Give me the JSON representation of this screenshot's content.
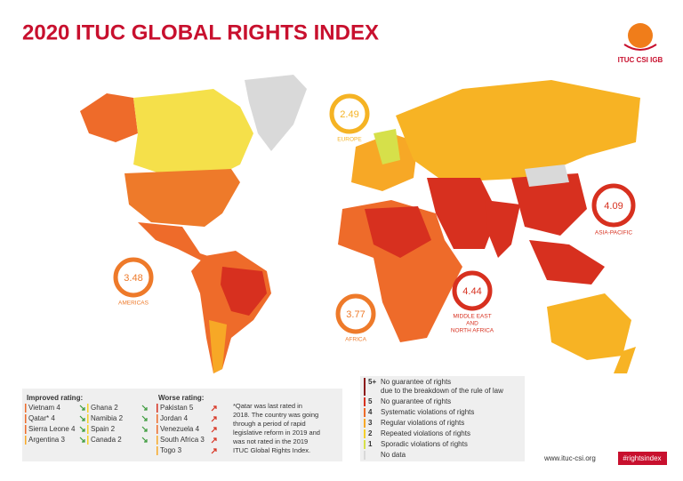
{
  "header": {
    "title": "2020 ITUC GLOBAL RIGHTS INDEX",
    "logo_text": "ITUC CSI IGB"
  },
  "regions": [
    {
      "value": "2.49",
      "label_lines": [
        "EUROPE"
      ],
      "color": "#f5b324"
    },
    {
      "value": "4.09",
      "label_lines": [
        "ASIA-PACIFIC"
      ],
      "color": "#d7301f"
    },
    {
      "value": "3.48",
      "label_lines": [
        "AMERICAS"
      ],
      "color": "#ee7a2a"
    },
    {
      "value": "3.77",
      "label_lines": [
        "AFRICA"
      ],
      "color": "#ee7a2a"
    },
    {
      "value": "4.44",
      "label_lines": [
        "MIDDLE EAST",
        "AND",
        "NORTH AFRICA"
      ],
      "color": "#d7301f"
    }
  ],
  "improved": {
    "heading": "Improved rating:",
    "items": [
      {
        "text": "Vietnam 4",
        "color": "#ee6b2a"
      },
      {
        "text": "Qatar* 4",
        "color": "#ee6b2a"
      },
      {
        "text": "Sierra Leone 4",
        "color": "#ee6b2a"
      },
      {
        "text": "Argentina 3",
        "color": "#f7a826"
      },
      {
        "text": "Ghana 2",
        "color": "#f5d02a"
      },
      {
        "text": "Namibia 2",
        "color": "#f5d02a"
      },
      {
        "text": "Spain 2",
        "color": "#f5d02a"
      },
      {
        "text": "Canada 2",
        "color": "#f5d02a"
      }
    ]
  },
  "worse": {
    "heading": "Worse rating:",
    "items": [
      {
        "text": "Pakistan 5",
        "color": "#d7301f"
      },
      {
        "text": "Jordan 4",
        "color": "#ee6b2a"
      },
      {
        "text": "Venezuela 4",
        "color": "#ee6b2a"
      },
      {
        "text": "South Africa 3",
        "color": "#f7a826"
      },
      {
        "text": "Togo 3",
        "color": "#f7a826"
      }
    ]
  },
  "note_lines": [
    "*Qatar was last rated in",
    "2018. The country was going",
    "through a period of rapid",
    "legislative reform in 2019 and",
    "was not rated in the 2019",
    "ITUC Global Rights Index."
  ],
  "legend": [
    {
      "key": "5+",
      "lines": [
        "No guarantee of rights",
        "due to the breakdown of the rule of law"
      ],
      "color": "#8b1a1a"
    },
    {
      "key": "5",
      "lines": [
        "No guarantee of rights"
      ],
      "color": "#d7301f"
    },
    {
      "key": "4",
      "lines": [
        "Systematic violations of rights"
      ],
      "color": "#ee6b2a"
    },
    {
      "key": "3",
      "lines": [
        "Regular violations of rights"
      ],
      "color": "#f7a826"
    },
    {
      "key": "2",
      "lines": [
        "Repeated violations of rights"
      ],
      "color": "#f5d02a"
    },
    {
      "key": "1",
      "lines": [
        "Sporadic violations of rights"
      ],
      "color": "#d6e04a"
    },
    {
      "lines": [
        "No data"
      ],
      "color": "#d9d9d9"
    }
  ],
  "footer": {
    "url": "www.ituc-csi.org",
    "hashtag": "#rightsindex"
  }
}
